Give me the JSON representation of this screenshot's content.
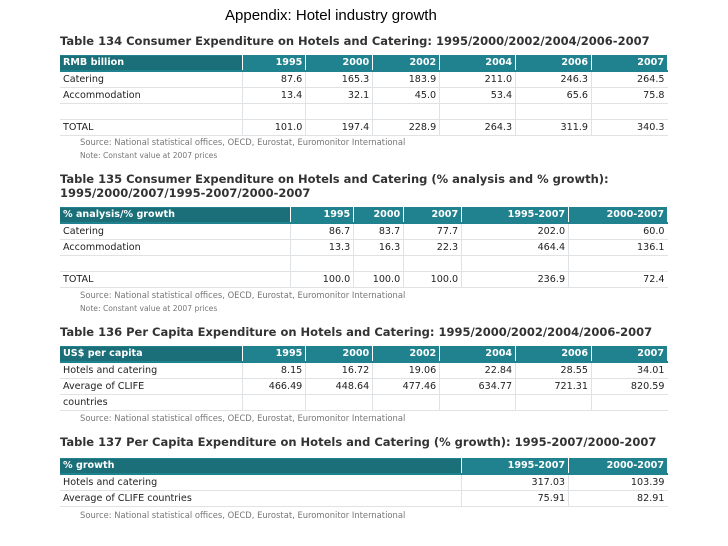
{
  "slide_title": "Appendix: Hotel industry growth",
  "table134": {
    "title": "Table 134 Consumer Expenditure on Hotels and Catering: 1995/2000/2002/2004/2006-2007",
    "header": [
      "RMB billion",
      "1995",
      "2000",
      "2002",
      "2004",
      "2006",
      "2007"
    ],
    "rows": [
      [
        "Catering",
        "87.6",
        "165.3",
        "183.9",
        "211.0",
        "246.3",
        "264.5"
      ],
      [
        "Accommodation",
        "13.4",
        "32.1",
        "45.0",
        "53.4",
        "65.6",
        "75.8"
      ],
      [
        "",
        "",
        "",
        "",
        "",
        "",
        ""
      ],
      [
        "TOTAL",
        "101.0",
        "197.4",
        "228.9",
        "264.3",
        "311.9",
        "340.3"
      ]
    ],
    "source": "Source: National statistical offices, OECD, Eurostat, Euromonitor International",
    "note": "Note: Constant value at 2007 prices"
  },
  "table135": {
    "title": "Table 135 Consumer Expenditure on Hotels and Catering (% analysis and % growth): 1995/2000/2007/1995-2007/2000-2007",
    "header": [
      "% analysis/% growth",
      "1995",
      "2000",
      "2007",
      "1995-2007",
      "2000-2007"
    ],
    "rows": [
      [
        "Catering",
        "86.7",
        "83.7",
        "77.7",
        "202.0",
        "60.0"
      ],
      [
        "Accommodation",
        "13.3",
        "16.3",
        "22.3",
        "464.4",
        "136.1"
      ],
      [
        "",
        "",
        "",
        "",
        "",
        ""
      ],
      [
        "TOTAL",
        "100.0",
        "100.0",
        "100.0",
        "236.9",
        "72.4"
      ]
    ],
    "source": "Source: National statistical offices, OECD, Eurostat, Euromonitor International",
    "note": "Note: Constant value at 2007 prices"
  },
  "table136": {
    "title": "Table 136 Per Capita Expenditure on Hotels and Catering: 1995/2000/2002/2004/2006-2007",
    "header": [
      "US$ per capita",
      "1995",
      "2000",
      "2002",
      "2004",
      "2006",
      "2007"
    ],
    "rows": [
      [
        "Hotels and catering",
        "8.15",
        "16.72",
        "19.06",
        "22.84",
        "28.55",
        "34.01"
      ],
      [
        "Average of CLIFE",
        "466.49",
        "448.64",
        "477.46",
        "634.77",
        "721.31",
        "820.59"
      ],
      [
        "countries",
        "",
        "",
        "",
        "",
        "",
        ""
      ]
    ],
    "source": "Source: National statistical offices, OECD, Eurostat, Euromonitor International"
  },
  "table137": {
    "title": "Table 137 Per Capita Expenditure on Hotels and Catering (% growth): 1995-2007/2000-2007",
    "header": [
      "% growth",
      "1995-2007",
      "2000-2007"
    ],
    "rows": [
      [
        "Hotels and catering",
        "317.03",
        "103.39"
      ],
      [
        "Average of CLIFE countries",
        "75.91",
        "82.91"
      ]
    ],
    "source": "Source: National statistical offices, OECD, Eurostat, Euromonitor International"
  }
}
